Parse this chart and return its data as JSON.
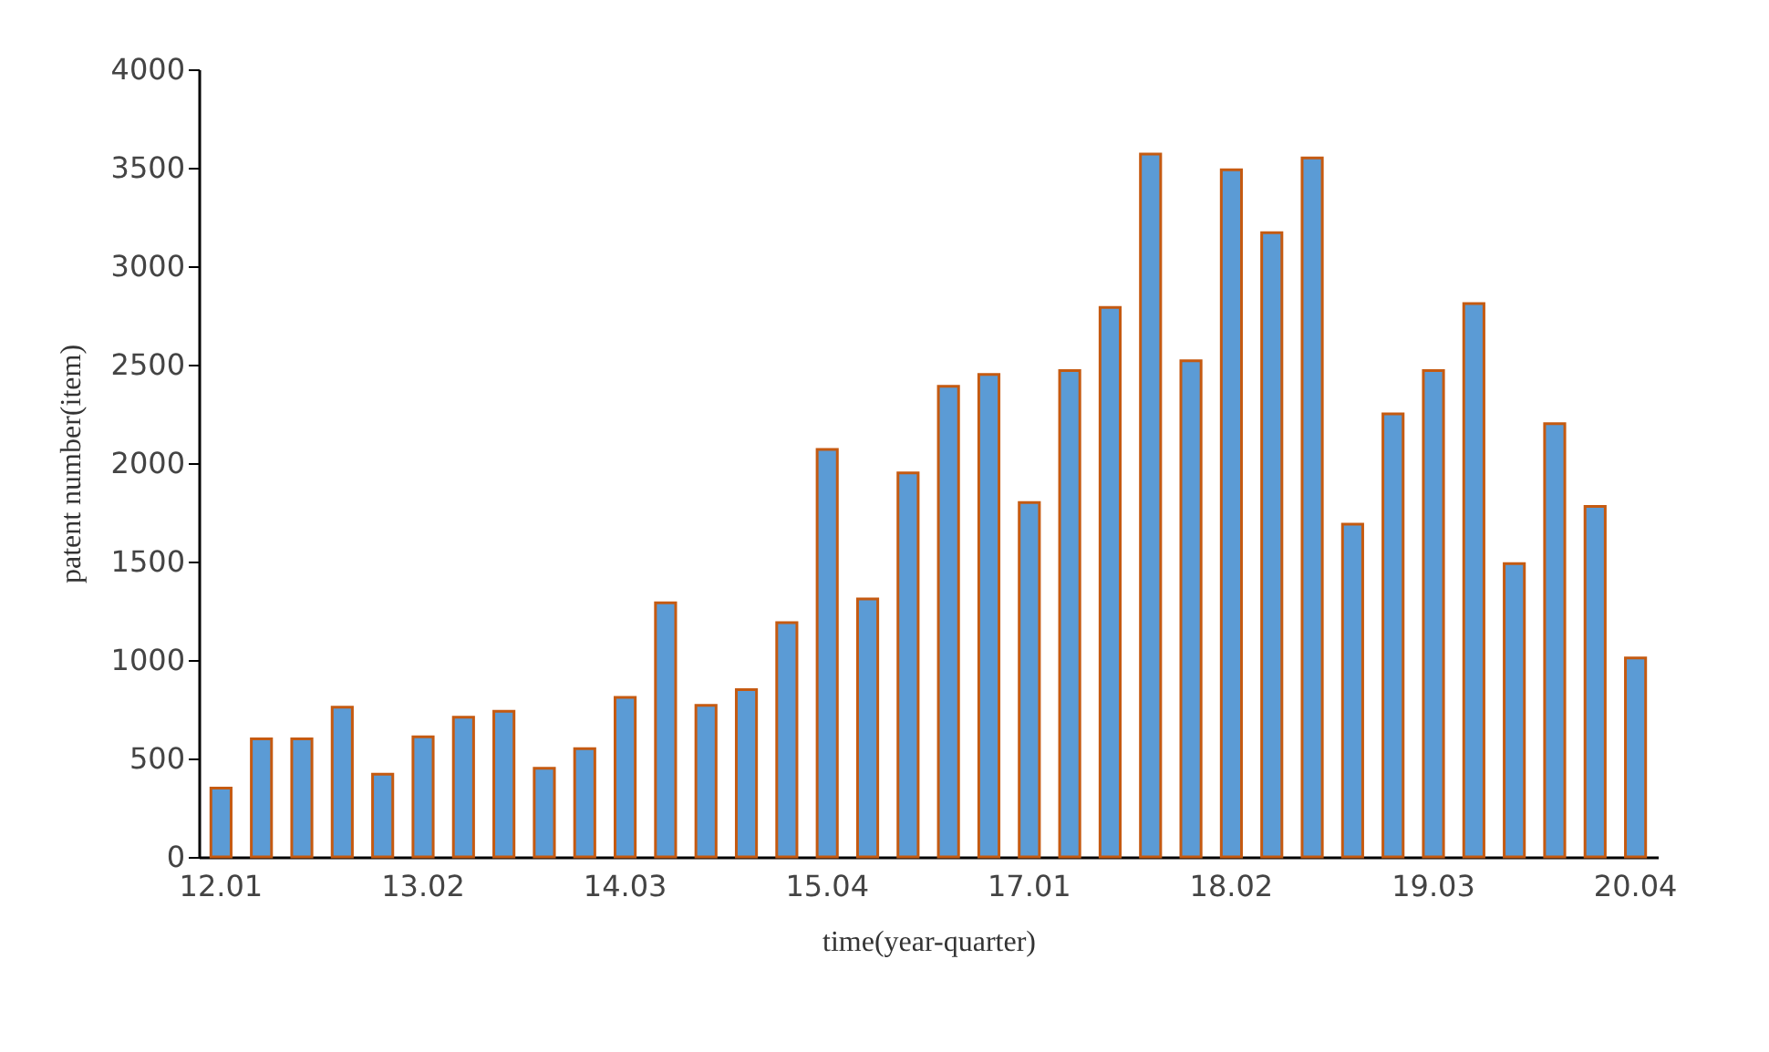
{
  "chart_data": {
    "type": "bar",
    "xlabel": "time(year-quarter)",
    "ylabel": "patent number(item)",
    "categories": [
      "12.01",
      null,
      null,
      null,
      null,
      "13.02",
      null,
      null,
      null,
      null,
      "14.03",
      null,
      null,
      null,
      null,
      "15.04",
      null,
      null,
      null,
      null,
      "17.01",
      null,
      null,
      null,
      null,
      "18.02",
      null,
      null,
      null,
      null,
      "19.03",
      null,
      null,
      null,
      null,
      "20.04"
    ],
    "series": [
      {
        "color": "#5b9bd5",
        "values": [
          350,
          600,
          600,
          760,
          420,
          610,
          710,
          740,
          450,
          550,
          810,
          1290,
          770,
          850,
          1190,
          2070,
          1310,
          1950,
          2390,
          2450,
          1800,
          2470,
          2790,
          3570,
          2520,
          3490,
          3170,
          3550,
          1690,
          2250,
          2470,
          2810,
          1490,
          2200,
          1780,
          1010
        ]
      }
    ],
    "ylim": [
      0,
      4000
    ],
    "yticks": [
      0,
      500,
      1000,
      1500,
      2000,
      2500,
      3000,
      3500,
      4000
    ],
    "grid": false
  }
}
